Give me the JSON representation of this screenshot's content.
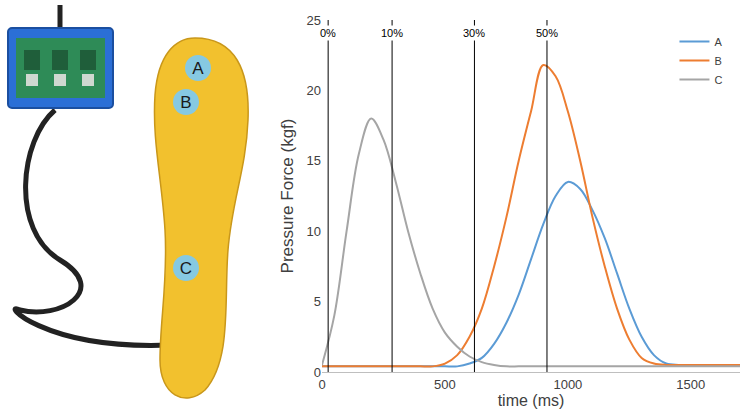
{
  "chart_data": {
    "type": "line",
    "xlabel": "time (ms)",
    "ylabel": "Pressure Force (kgf)",
    "x": [
      0,
      50,
      100,
      150,
      200,
      250,
      300,
      350,
      400,
      450,
      500,
      550,
      600,
      650,
      700,
      750,
      800,
      850,
      900,
      950,
      1000,
      1050,
      1100,
      1150,
      1200,
      1250,
      1300,
      1350,
      1400,
      1450,
      1500,
      1550,
      1600,
      1650,
      1700
    ],
    "series": [
      {
        "name": "A",
        "color": "#5b9bd5",
        "values": [
          0.4,
          0.4,
          0.4,
          0.4,
          0.4,
          0.4,
          0.4,
          0.4,
          0.4,
          0.4,
          0.4,
          0.4,
          0.6,
          1,
          2,
          3.5,
          5.5,
          8,
          10.5,
          12.5,
          13.5,
          13,
          11.5,
          9.5,
          7,
          4.5,
          2.5,
          1.2,
          0.6,
          0.5,
          0.5,
          0.5,
          0.5,
          0.5,
          0.5
        ]
      },
      {
        "name": "B",
        "color": "#ed7d31",
        "values": [
          0.4,
          0.4,
          0.4,
          0.4,
          0.4,
          0.4,
          0.4,
          0.4,
          0.4,
          0.4,
          0.6,
          1.2,
          2.5,
          4.5,
          7.5,
          11,
          15,
          18.5,
          21.8,
          21,
          18.5,
          15,
          11,
          7.5,
          4.5,
          2.3,
          1,
          0.6,
          0.5,
          0.5,
          0.5,
          0.5,
          0.5,
          0.5,
          0.5
        ]
      },
      {
        "name": "C",
        "color": "#a5a5a5",
        "values": [
          0.5,
          4,
          10,
          15.5,
          18,
          16.5,
          13.5,
          10,
          7,
          4.5,
          2.8,
          1.8,
          1.1,
          0.7,
          0.5,
          0.4,
          0.4,
          0.4,
          0.4,
          0.4,
          0.4,
          0.4,
          0.4,
          0.4,
          0.4,
          0.4,
          0.4,
          0.4,
          0.4,
          0.4,
          0.4,
          0.4,
          0.4,
          0.4,
          0.4
        ]
      }
    ],
    "xlim": [
      0,
      1700
    ],
    "ylim": [
      0,
      25
    ],
    "xticks": [
      0,
      500,
      1000,
      1500
    ],
    "yticks": [
      0,
      5,
      10,
      15,
      20,
      25
    ],
    "grid": false,
    "legend": "upper right",
    "annotations": [
      {
        "x": 25,
        "text": "0%"
      },
      {
        "x": 285,
        "text": "10%"
      },
      {
        "x": 620,
        "text": "30%"
      },
      {
        "x": 915,
        "text": "50%"
      }
    ]
  }
}
